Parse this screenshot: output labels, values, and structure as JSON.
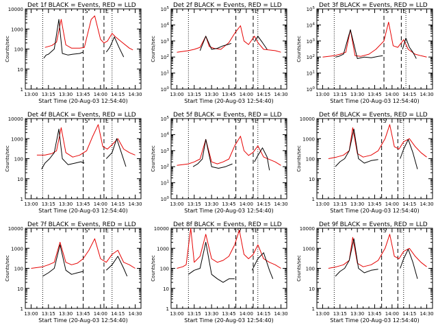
{
  "colors": {
    "events": "#000000",
    "lld": "#e60000",
    "axis": "#000000",
    "background": "#ffffff"
  },
  "common": {
    "xlabel": "Start Time (20-Aug-03 12:54:40)",
    "ylabel": "Counts/sec",
    "xticks": [
      "13:00",
      "13:15",
      "13:30",
      "13:45",
      "14:00",
      "14:15",
      "14:30"
    ],
    "region_markers": [
      "S",
      "E"
    ]
  },
  "chart_data": [
    {
      "type": "line",
      "title": "Det 1f BLACK = Events, RED = LLD",
      "ytick_style": "decimal",
      "ylim": [
        1,
        10000
      ],
      "yticks": [
        "1",
        "10",
        "100",
        "1000",
        "10000"
      ],
      "yscale": "log",
      "dashed_lines": [
        "13:45",
        "14:03"
      ],
      "dotted_lines": [
        "13:10",
        "14:10"
      ],
      "series": [
        {
          "color": "red",
          "x": [
            "13:12",
            "13:18",
            "13:22",
            "13:26",
            "13:30",
            "13:35",
            "13:42",
            "13:46",
            "13:52",
            "13:55",
            "14:00",
            "14:03",
            "14:06",
            "14:10",
            "14:13",
            "14:18",
            "14:25",
            "14:28"
          ],
          "y": [
            120,
            150,
            220,
            3000,
            160,
            110,
            110,
            120,
            3000,
            4500,
            300,
            200,
            250,
            600,
            400,
            230,
            110,
            90
          ]
        },
        {
          "color": "black",
          "x": [
            "13:11",
            "13:13",
            "13:15",
            "13:20",
            "13:24",
            "13:27",
            "13:32",
            "13:36",
            "13:42",
            "13:45"
          ],
          "y": [
            35,
            50,
            55,
            100,
            3000,
            60,
            50,
            55,
            60,
            70
          ]
        },
        {
          "color": "black",
          "x": [
            "14:05",
            "14:08",
            "14:12",
            "14:16",
            "14:20"
          ],
          "y": [
            70,
            120,
            400,
            120,
            40
          ]
        }
      ]
    },
    {
      "type": "line",
      "title": "Det 2f BLACK = Events, RED = LLD",
      "ytick_style": "power",
      "ylim": [
        1,
        100000
      ],
      "yticks": [
        "10^0",
        "10^1",
        "10^2",
        "10^3",
        "10^4",
        "10^5"
      ],
      "yscale": "log",
      "dashed_lines": [
        "13:51",
        "14:06"
      ],
      "dotted_lines": [
        "13:10",
        "14:10"
      ],
      "series": [
        {
          "color": "red",
          "x": [
            "13:00",
            "13:10",
            "13:15",
            "13:20",
            "13:25",
            "13:28",
            "13:32",
            "13:38",
            "13:45",
            "13:50",
            "13:55",
            "13:58",
            "14:02",
            "14:07",
            "14:10",
            "14:15",
            "14:25",
            "14:30"
          ],
          "y": [
            200,
            250,
            300,
            400,
            2000,
            450,
            350,
            300,
            800,
            3000,
            9000,
            1000,
            600,
            2000,
            800,
            300,
            250,
            200
          ]
        },
        {
          "color": "black",
          "x": [
            "13:20",
            "13:25",
            "13:30",
            "13:35",
            "13:40",
            "13:44",
            "13:47"
          ],
          "y": [
            250,
            2000,
            300,
            350,
            500,
            600,
            700
          ]
        },
        {
          "color": "black",
          "x": [
            "14:07",
            "14:10",
            "14:14",
            "14:18"
          ],
          "y": [
            900,
            2000,
            800,
            300
          ]
        }
      ]
    },
    {
      "type": "line",
      "title": "Det 3f BLACK = Events, RED = LLD",
      "ytick_style": "power",
      "ylim": [
        1,
        100000
      ],
      "yticks": [
        "10^0",
        "10^1",
        "10^2",
        "10^3",
        "10^4",
        "10^5"
      ],
      "yscale": "log",
      "dashed_lines": [
        "13:53",
        "14:08"
      ],
      "dotted_lines": [
        "13:10",
        "14:12"
      ],
      "series": [
        {
          "color": "red",
          "x": [
            "13:00",
            "13:10",
            "13:15",
            "13:20",
            "13:24",
            "13:28",
            "13:33",
            "13:40",
            "13:46",
            "13:53",
            "13:57",
            "14:01",
            "14:05",
            "14:10",
            "14:14",
            "14:20",
            "14:25",
            "14:30"
          ],
          "y": [
            100,
            120,
            150,
            200,
            5000,
            120,
            110,
            150,
            300,
            1000,
            15000,
            500,
            400,
            1200,
            300,
            150,
            120,
            100
          ]
        },
        {
          "color": "black",
          "x": [
            "13:11",
            "13:14",
            "13:18",
            "13:24",
            "13:30",
            "13:36",
            "13:42",
            "13:48",
            "13:52"
          ],
          "y": [
            100,
            110,
            150,
            5000,
            80,
            100,
            90,
            110,
            120
          ]
        },
        {
          "color": "black",
          "x": [
            "14:09",
            "14:12",
            "14:15",
            "14:18",
            "14:21"
          ],
          "y": [
            300,
            1500,
            400,
            200,
            80
          ]
        }
      ]
    },
    {
      "type": "line",
      "title": "Det 4f BLACK = Events, RED = LLD",
      "ytick_style": "decimal",
      "ylim": [
        1,
        10000
      ],
      "yticks": [
        "1",
        "10",
        "100",
        "1000",
        "10000"
      ],
      "yscale": "log",
      "dashed_lines": [
        "13:45",
        "14:03"
      ],
      "dotted_lines": [
        "13:10",
        "14:10"
      ],
      "series": [
        {
          "color": "red",
          "x": [
            "13:05",
            "13:12",
            "13:18",
            "13:22",
            "13:26",
            "13:30",
            "13:36",
            "13:42",
            "13:48",
            "13:53",
            "13:58",
            "14:02",
            "14:06",
            "14:10",
            "14:15",
            "14:20",
            "14:25",
            "14:30"
          ],
          "y": [
            150,
            150,
            180,
            250,
            3500,
            200,
            120,
            150,
            250,
            1200,
            5000,
            400,
            300,
            500,
            1000,
            300,
            200,
            150
          ]
        },
        {
          "color": "black",
          "x": [
            "13:09",
            "13:12",
            "13:16",
            "13:20",
            "13:24",
            "13:27",
            "13:32",
            "13:38",
            "13:43",
            "13:46"
          ],
          "y": [
            30,
            60,
            100,
            200,
            3000,
            100,
            50,
            60,
            70,
            60
          ]
        },
        {
          "color": "black",
          "x": [
            "14:05",
            "14:10",
            "14:14",
            "14:18",
            "14:22"
          ],
          "y": [
            100,
            200,
            1000,
            200,
            40
          ]
        }
      ]
    },
    {
      "type": "line",
      "title": "Det 5f BLACK = Events, RED = LLD",
      "ytick_style": "power",
      "ylim": [
        1,
        100000
      ],
      "yticks": [
        "10^0",
        "10^1",
        "10^2",
        "10^3",
        "10^4",
        "10^5"
      ],
      "yscale": "log",
      "dashed_lines": [
        "13:51",
        "14:06"
      ],
      "dotted_lines": [
        "13:10",
        "14:10"
      ],
      "series": [
        {
          "color": "red",
          "x": [
            "13:00",
            "13:10",
            "13:15",
            "13:20",
            "13:25",
            "13:30",
            "13:35",
            "13:40",
            "13:45",
            "13:50",
            "13:55",
            "13:58",
            "14:02",
            "14:06",
            "14:10",
            "14:15",
            "14:25",
            "14:30"
          ],
          "y": [
            120,
            150,
            200,
            300,
            5000,
            200,
            150,
            200,
            300,
            2000,
            8000,
            1000,
            500,
            800,
            2000,
            400,
            200,
            120
          ]
        },
        {
          "color": "black",
          "x": [
            "13:14",
            "13:18",
            "13:22",
            "13:25",
            "13:30",
            "13:36",
            "13:42",
            "13:48"
          ],
          "y": [
            100,
            150,
            300,
            5000,
            100,
            80,
            100,
            150
          ]
        },
        {
          "color": "black",
          "x": [
            "14:07",
            "14:10",
            "14:14",
            "14:18",
            "14:20"
          ],
          "y": [
            200,
            500,
            1500,
            400,
            60
          ]
        }
      ]
    },
    {
      "type": "line",
      "title": "Det 6f BLACK = Events, RED = LLD",
      "ytick_style": "decimal",
      "ylim": [
        1,
        10000
      ],
      "yticks": [
        "1",
        "10",
        "100",
        "1000",
        "10000"
      ],
      "yscale": "log",
      "dashed_lines": [
        "13:51",
        "14:05"
      ],
      "dotted_lines": [
        "13:10",
        "14:10"
      ],
      "series": [
        {
          "color": "red",
          "x": [
            "13:05",
            "13:12",
            "13:18",
            "13:23",
            "13:26",
            "13:30",
            "13:35",
            "13:42",
            "13:48",
            "13:54",
            "13:58",
            "14:02",
            "14:06",
            "14:10",
            "14:15",
            "14:20",
            "14:25",
            "14:30"
          ],
          "y": [
            100,
            120,
            150,
            250,
            3500,
            180,
            120,
            150,
            250,
            1000,
            5000,
            400,
            300,
            700,
            1000,
            400,
            200,
            120
          ]
        },
        {
          "color": "black",
          "x": [
            "13:11",
            "13:15",
            "13:19",
            "13:23",
            "13:27",
            "13:31",
            "13:36",
            "13:42",
            "13:48"
          ],
          "y": [
            40,
            70,
            100,
            250,
            3000,
            100,
            60,
            80,
            90
          ]
        },
        {
          "color": "black",
          "x": [
            "14:07",
            "14:10",
            "14:14",
            "14:18",
            "14:22"
          ],
          "y": [
            100,
            300,
            900,
            200,
            30
          ]
        }
      ]
    },
    {
      "type": "line",
      "title": "Det 7f BLACK = Events, RED = LLD",
      "ytick_style": "decimal",
      "ylim": [
        1,
        10000
      ],
      "yticks": [
        "1",
        "10",
        "100",
        "1000",
        "10000"
      ],
      "yscale": "log",
      "dashed_lines": [
        "13:45",
        "14:03"
      ],
      "dotted_lines": [
        "13:10",
        "14:10"
      ],
      "series": [
        {
          "color": "red",
          "x": [
            "13:00",
            "13:10",
            "13:15",
            "13:20",
            "13:25",
            "13:30",
            "13:35",
            "13:40",
            "13:45",
            "13:50",
            "13:55",
            "14:00",
            "14:05",
            "14:10",
            "14:15",
            "14:20",
            "14:25",
            "14:30"
          ],
          "y": [
            100,
            120,
            150,
            200,
            2000,
            200,
            150,
            180,
            300,
            800,
            3000,
            300,
            200,
            500,
            800,
            200,
            150,
            100
          ]
        },
        {
          "color": "black",
          "x": [
            "13:10",
            "13:15",
            "13:20",
            "13:25",
            "13:30",
            "13:35",
            "13:40",
            "13:45"
          ],
          "y": [
            40,
            60,
            100,
            1500,
            80,
            50,
            60,
            70
          ]
        },
        {
          "color": "black",
          "x": [
            "14:05",
            "14:10",
            "14:15",
            "14:20",
            "14:23"
          ],
          "y": [
            80,
            150,
            400,
            100,
            40
          ]
        }
      ]
    },
    {
      "type": "line",
      "title": "Det 8f BLACK = Events, RED = LLD",
      "ytick_style": "decimal",
      "ylim": [
        1,
        10000
      ],
      "yticks": [
        "1",
        "10",
        "100",
        "1000",
        "10000"
      ],
      "yscale": "log",
      "dashed_lines": [
        "13:51",
        "14:06"
      ],
      "dotted_lines": [
        "13:10",
        "14:10"
      ],
      "series": [
        {
          "color": "red",
          "x": [
            "13:00",
            "13:05",
            "13:08",
            "13:12",
            "13:15",
            "13:20",
            "13:25",
            "13:30",
            "13:35",
            "13:40",
            "13:45",
            "13:50",
            "13:54",
            "13:58",
            "14:02",
            "14:06",
            "14:10",
            "14:15",
            "14:20",
            "14:25",
            "14:30"
          ],
          "y": [
            100,
            120,
            150,
            10000,
            200,
            400,
            5000,
            300,
            200,
            250,
            400,
            1500,
            8000,
            500,
            300,
            500,
            1500,
            300,
            200,
            150,
            100
          ]
        },
        {
          "color": "black",
          "x": [
            "13:10",
            "13:15",
            "13:20",
            "13:25",
            "13:30",
            "13:35",
            "13:40",
            "13:45",
            "13:50"
          ],
          "y": [
            50,
            80,
            100,
            2000,
            50,
            30,
            20,
            30,
            30
          ]
        },
        {
          "color": "black",
          "x": [
            "14:05",
            "14:10",
            "14:15",
            "14:20",
            "14:23"
          ],
          "y": [
            80,
            300,
            600,
            80,
            30
          ]
        }
      ]
    },
    {
      "type": "line",
      "title": "Det 9f BLACK = Events, RED = LLD",
      "ytick_style": "decimal",
      "ylim": [
        1,
        10000
      ],
      "yticks": [
        "1",
        "10",
        "100",
        "1000",
        "10000"
      ],
      "yscale": "log",
      "dashed_lines": [
        "13:51",
        "14:05"
      ],
      "dotted_lines": [
        "13:10",
        "14:10"
      ],
      "series": [
        {
          "color": "red",
          "x": [
            "13:05",
            "13:12",
            "13:18",
            "13:23",
            "13:26",
            "13:30",
            "13:35",
            "13:42",
            "13:48",
            "13:54",
            "13:58",
            "14:02",
            "14:06",
            "14:10",
            "14:15",
            "14:20",
            "14:25",
            "14:30"
          ],
          "y": [
            100,
            120,
            150,
            250,
            3500,
            180,
            120,
            150,
            250,
            1000,
            5000,
            400,
            300,
            700,
            1000,
            400,
            200,
            120
          ]
        },
        {
          "color": "black",
          "x": [
            "13:11",
            "13:15",
            "13:19",
            "13:23",
            "13:27",
            "13:31",
            "13:36",
            "13:42",
            "13:48"
          ],
          "y": [
            40,
            70,
            100,
            250,
            3000,
            100,
            60,
            80,
            90
          ]
        },
        {
          "color": "black",
          "x": [
            "14:07",
            "14:10",
            "14:14",
            "14:18",
            "14:22"
          ],
          "y": [
            100,
            300,
            900,
            200,
            30
          ]
        }
      ]
    }
  ]
}
